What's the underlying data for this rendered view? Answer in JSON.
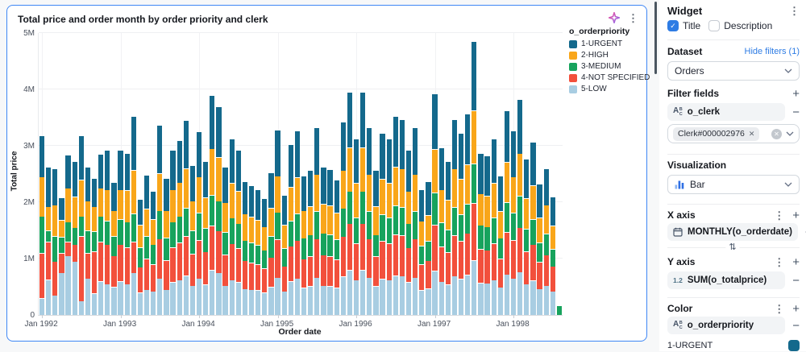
{
  "widget": {
    "title": "Total price and order month by order priority and clerk",
    "sparkle_icon": "ai-sparkle-icon",
    "menu_icon": "kebab-menu-icon"
  },
  "chart_data": {
    "type": "bar",
    "stacked": true,
    "title": "Total price and order month by order priority and clerk",
    "xlabel": "Order date",
    "ylabel": "Total price",
    "legend_title": "o_orderpriority",
    "legend_position": "top-right",
    "grid": true,
    "values_unit": "millions",
    "ylim_millions": [
      0,
      5
    ],
    "ytick_labels": [
      "0",
      "1M",
      "2M",
      "3M",
      "4M",
      "5M"
    ],
    "xtick_labels": [
      "Jan 1992",
      "Jan 1993",
      "Jan 1994",
      "Jan 1995",
      "Jan 1996",
      "Jan 1997",
      "Jan 1998"
    ],
    "stack_order_bottom_to_top": [
      "5-LOW",
      "4-NOT SPECIFIED",
      "3-MEDIUM",
      "2-HIGH",
      "1-URGENT"
    ],
    "categories": [
      "Jan 1992",
      "Feb 1992",
      "Mar 1992",
      "Apr 1992",
      "May 1992",
      "Jun 1992",
      "Jul 1992",
      "Aug 1992",
      "Sep 1992",
      "Oct 1992",
      "Nov 1992",
      "Dec 1992",
      "Jan 1993",
      "Feb 1993",
      "Mar 1993",
      "Apr 1993",
      "May 1993",
      "Jun 1993",
      "Jul 1993",
      "Aug 1993",
      "Sep 1993",
      "Oct 1993",
      "Nov 1993",
      "Dec 1993",
      "Jan 1994",
      "Feb 1994",
      "Mar 1994",
      "Apr 1994",
      "May 1994",
      "Jun 1994",
      "Jul 1994",
      "Aug 1994",
      "Sep 1994",
      "Oct 1994",
      "Nov 1994",
      "Dec 1994",
      "Jan 1995",
      "Feb 1995",
      "Mar 1995",
      "Apr 1995",
      "May 1995",
      "Jun 1995",
      "Jul 1995",
      "Aug 1995",
      "Sep 1995",
      "Oct 1995",
      "Nov 1995",
      "Dec 1995",
      "Jan 1996",
      "Feb 1996",
      "Mar 1996",
      "Apr 1996",
      "May 1996",
      "Jun 1996",
      "Jul 1996",
      "Aug 1996",
      "Sep 1996",
      "Oct 1996",
      "Nov 1996",
      "Dec 1996",
      "Jan 1997",
      "Feb 1997",
      "Mar 1997",
      "Apr 1997",
      "May 1997",
      "Jun 1997",
      "Jul 1997",
      "Aug 1997",
      "Sep 1997",
      "Oct 1997",
      "Nov 1997",
      "Dec 1997",
      "Jan 1998",
      "Feb 1998",
      "Mar 1998",
      "Apr 1998",
      "May 1998",
      "Jun 1998",
      "Jul 1998",
      "Aug 1998"
    ],
    "series": [
      {
        "name": "1-URGENT",
        "color": "#14698C",
        "values": [
          0.73,
          0.7,
          0.65,
          0.4,
          0.59,
          0.62,
          0.78,
          0.6,
          0.5,
          0.6,
          0.7,
          0.5,
          0.7,
          0.65,
          0.95,
          0.45,
          0.6,
          0.5,
          0.85,
          0.57,
          0.7,
          0.75,
          0.85,
          0.63,
          0.8,
          0.64,
          0.95,
          0.9,
          0.63,
          0.78,
          0.72,
          0.57,
          0.56,
          0.54,
          0.5,
          0.62,
          0.82,
          0.52,
          0.75,
          0.82,
          0.61,
          0.63,
          0.83,
          0.65,
          0.64,
          0.59,
          0.86,
          0.98,
          0.78,
          0.98,
          0.83,
          0.63,
          0.81,
          0.78,
          0.89,
          0.87,
          0.73,
          0.83,
          0.56,
          0.59,
          0.98,
          0.74,
          0.68,
          0.87,
          0.81,
          0.89,
          1.22,
          0.71,
          0.71,
          0.78,
          0.62,
          0.91,
          0.81,
          0.96,
          0.69,
          0.76,
          0.59,
          0.65,
          0.52,
          0.0
        ]
      },
      {
        "name": "2-HIGH",
        "color": "#F9A61A",
        "values": [
          0.7,
          0.42,
          0.55,
          0.3,
          0.6,
          0.55,
          0.65,
          0.52,
          0.44,
          0.5,
          0.55,
          0.45,
          0.52,
          0.56,
          0.77,
          0.4,
          0.48,
          0.45,
          0.66,
          0.48,
          0.57,
          0.6,
          0.7,
          0.52,
          0.64,
          0.54,
          0.82,
          0.78,
          0.52,
          0.62,
          0.58,
          0.47,
          0.46,
          0.44,
          0.41,
          0.5,
          0.64,
          0.42,
          0.6,
          0.64,
          0.49,
          0.51,
          0.65,
          0.52,
          0.51,
          0.47,
          0.67,
          0.78,
          0.61,
          0.78,
          0.65,
          0.51,
          0.63,
          0.61,
          0.69,
          0.68,
          0.57,
          0.65,
          0.43,
          0.46,
          0.77,
          0.58,
          0.53,
          0.68,
          0.63,
          0.7,
          0.95,
          0.56,
          0.55,
          0.61,
          0.48,
          0.71,
          0.64,
          0.75,
          0.54,
          0.6,
          0.45,
          0.51,
          0.41,
          0.0
        ]
      },
      {
        "name": "3-MEDIUM",
        "color": "#17A35D",
        "values": [
          0.65,
          0.2,
          0.45,
          0.28,
          0.35,
          0.3,
          0.35,
          0.4,
          0.35,
          0.45,
          0.42,
          0.35,
          0.45,
          0.45,
          0.5,
          0.35,
          0.4,
          0.35,
          0.5,
          0.4,
          0.45,
          0.47,
          0.5,
          0.42,
          0.48,
          0.42,
          0.55,
          0.53,
          0.4,
          0.46,
          0.44,
          0.36,
          0.35,
          0.34,
          0.32,
          0.38,
          0.48,
          0.32,
          0.45,
          0.48,
          0.37,
          0.38,
          0.49,
          0.39,
          0.39,
          0.36,
          0.5,
          0.57,
          0.46,
          0.57,
          0.49,
          0.38,
          0.47,
          0.46,
          0.51,
          0.5,
          0.43,
          0.49,
          0.33,
          0.35,
          0.57,
          0.43,
          0.4,
          0.5,
          0.47,
          0.52,
          0.7,
          0.42,
          0.41,
          0.46,
          0.36,
          0.53,
          0.48,
          0.56,
          0.4,
          0.45,
          0.34,
          0.38,
          0.31,
          0.17
        ]
      },
      {
        "name": "4-NOT SPECIFIED",
        "color": "#F2503C",
        "values": [
          0.8,
          0.67,
          0.6,
          0.35,
          0.25,
          0.3,
          1.15,
          0.45,
          0.75,
          0.7,
          0.7,
          0.55,
          0.65,
          0.65,
          0.55,
          0.45,
          0.55,
          0.48,
          0.7,
          0.52,
          0.62,
          0.66,
          0.7,
          0.56,
          0.68,
          0.58,
          0.78,
          0.74,
          0.55,
          0.64,
          0.6,
          0.5,
          0.48,
          0.46,
          0.43,
          0.52,
          0.68,
          0.44,
          0.62,
          0.67,
          0.51,
          0.53,
          0.69,
          0.54,
          0.53,
          0.5,
          0.71,
          0.82,
          0.65,
          0.82,
          0.69,
          0.53,
          0.67,
          0.65,
          0.73,
          0.72,
          0.61,
          0.69,
          0.46,
          0.49,
          0.82,
          0.62,
          0.57,
          0.72,
          0.67,
          0.74,
          1.01,
          0.6,
          0.59,
          0.65,
          0.51,
          0.75,
          0.68,
          0.79,
          0.58,
          0.64,
          0.48,
          0.54,
          0.44,
          0.0
        ]
      },
      {
        "name": "5-LOW",
        "color": "#A8CDE2",
        "values": [
          0.3,
          0.63,
          0.35,
          0.75,
          1.05,
          0.95,
          0.25,
          0.65,
          0.38,
          0.6,
          0.55,
          0.5,
          0.6,
          0.55,
          0.75,
          0.4,
          0.45,
          0.42,
          0.65,
          0.45,
          0.58,
          0.62,
          0.7,
          0.52,
          0.65,
          0.54,
          0.8,
          0.75,
          0.52,
          0.62,
          0.58,
          0.46,
          0.45,
          0.44,
          0.4,
          0.5,
          0.66,
          0.42,
          0.6,
          0.65,
          0.48,
          0.51,
          0.66,
          0.52,
          0.51,
          0.48,
          0.68,
          0.8,
          0.62,
          0.8,
          0.66,
          0.51,
          0.64,
          0.62,
          0.7,
          0.69,
          0.58,
          0.66,
          0.44,
          0.47,
          0.78,
          0.59,
          0.54,
          0.69,
          0.64,
          0.71,
          0.97,
          0.57,
          0.56,
          0.62,
          0.49,
          0.72,
          0.65,
          0.76,
          0.55,
          0.61,
          0.46,
          0.52,
          0.42,
          0.0
        ]
      }
    ]
  },
  "panel": {
    "header": {
      "title": "Widget"
    },
    "checkboxes": {
      "title_label": "Title",
      "title_checked": true,
      "description_label": "Description",
      "description_checked": false
    },
    "dataset": {
      "label": "Dataset",
      "hide_filters_link": "Hide filters (1)",
      "selected": "Orders"
    },
    "filter_fields": {
      "label": "Filter fields",
      "field": "o_clerk",
      "chip_value": "Clerk#000002976"
    },
    "visualization": {
      "label": "Visualization",
      "selected": "Bar"
    },
    "x_axis": {
      "label": "X axis",
      "field": "MONTHLY(o_orderdate)"
    },
    "y_axis": {
      "label": "Y axis",
      "field": "SUM(o_totalprice)"
    },
    "color": {
      "label": "Color",
      "field": "o_orderpriority",
      "first_value": "1-URGENT",
      "first_value_color": "#14698C"
    }
  },
  "colors": {
    "accent_blue": "#2E7CE4",
    "card_selection_border": "#3F87F5",
    "page_background": "#F7F8F9"
  }
}
